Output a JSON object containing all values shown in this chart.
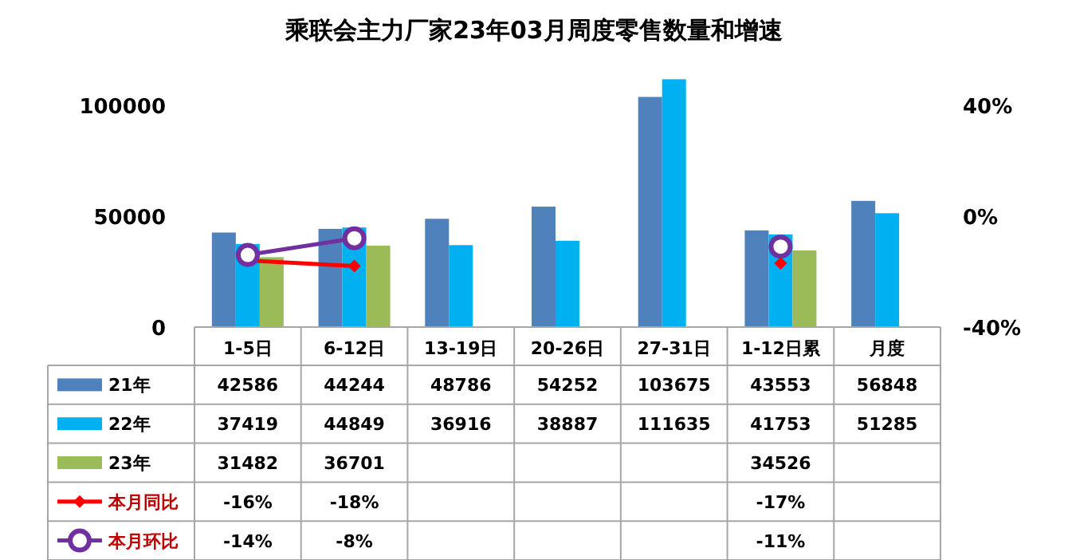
{
  "chart_data": {
    "type": "bar",
    "title": "乘联会主力厂家23年03月周度零售数量和增速",
    "categories": [
      "1-5日",
      "6-12日",
      "13-19日",
      "20-26日",
      "27-31日",
      "1-12日累",
      "月度"
    ],
    "series": [
      {
        "name": "21年",
        "color": "#4f81bd",
        "values": [
          42586,
          44244,
          48786,
          54252,
          103675,
          43553,
          56848
        ]
      },
      {
        "name": "22年",
        "color": "#00b0f0",
        "values": [
          37419,
          44849,
          36916,
          38887,
          111635,
          41753,
          51285
        ]
      },
      {
        "name": "23年",
        "color": "#9bbb59",
        "values": [
          31482,
          36701,
          null,
          null,
          null,
          34526,
          null
        ]
      },
      {
        "name": "本月同比",
        "type": "line",
        "axis": "y2",
        "color": "#ff0000",
        "marker": "diamond",
        "line_style": "solid",
        "values": [
          -16,
          -18,
          null,
          null,
          null,
          -17,
          null
        ],
        "value_labels": [
          "-16%",
          "-18%",
          null,
          null,
          null,
          "-17%",
          null
        ]
      },
      {
        "name": "本月环比",
        "type": "line",
        "axis": "y2",
        "color": "#7030a0",
        "marker": "circle",
        "line_style": "solid",
        "values": [
          -14,
          -8,
          null,
          null,
          null,
          -11,
          null
        ],
        "value_labels": [
          "-14%",
          "-8%",
          null,
          null,
          null,
          "-11%",
          null
        ]
      }
    ],
    "ylim": [
      0,
      115000
    ],
    "yticks": [
      0,
      50000,
      100000
    ],
    "y2lim": [
      -40,
      52
    ],
    "y2ticks": [
      {
        "value": -40,
        "label": "-40%"
      },
      {
        "value": 0,
        "label": "0%"
      },
      {
        "value": 40,
        "label": "40%"
      }
    ],
    "data_labels": true,
    "legend": "bottom"
  }
}
